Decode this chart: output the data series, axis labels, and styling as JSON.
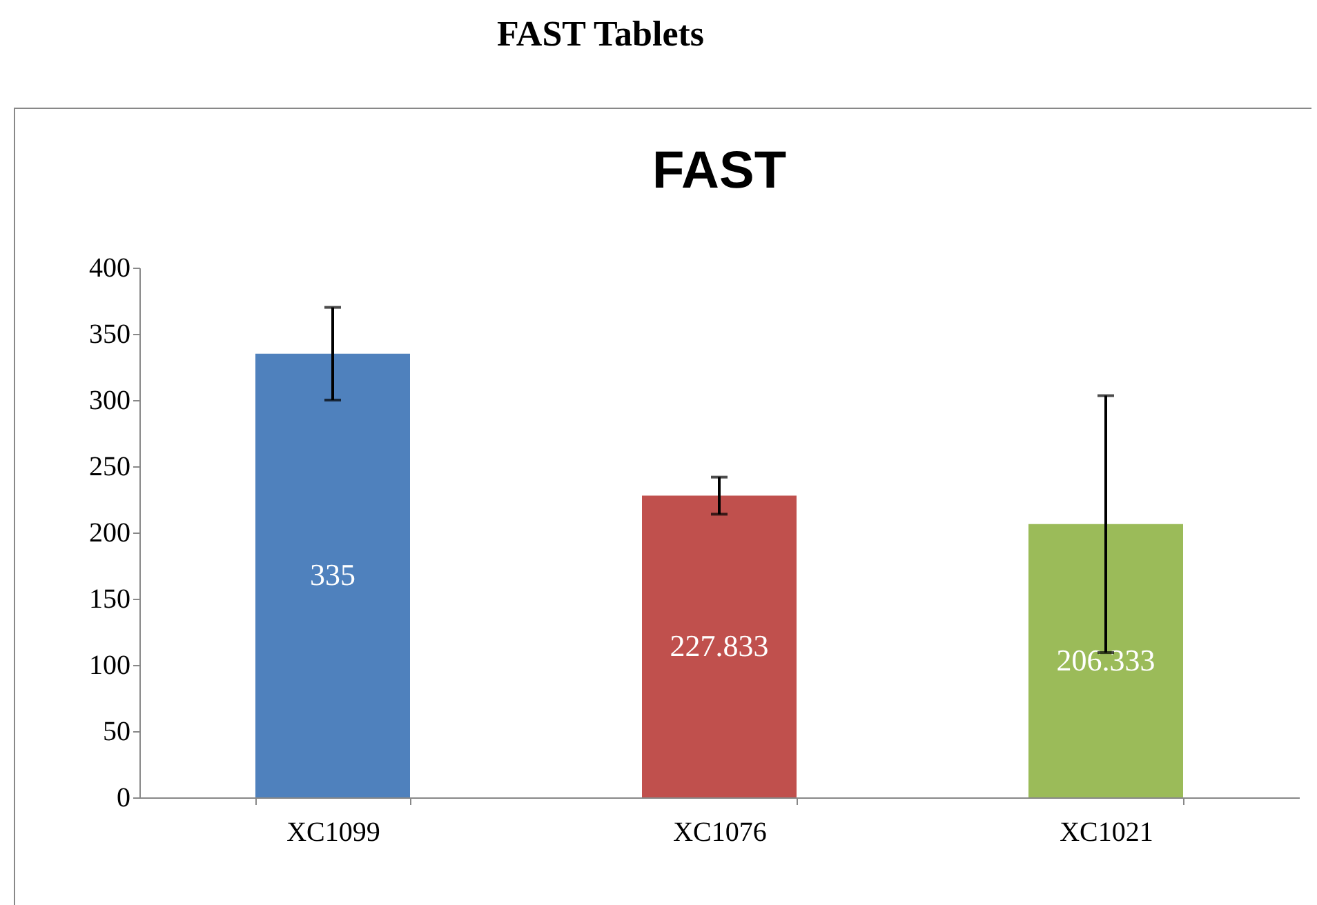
{
  "chart_data": {
    "type": "bar",
    "title": "FAST Tablets",
    "subtitle": "FAST",
    "categories": [
      "XC1099",
      "XC1076",
      "XC1021"
    ],
    "values": [
      335,
      227.833,
      206.333
    ],
    "colors": [
      "#4f81bd",
      "#c0504d",
      "#9bbb59"
    ],
    "errors": [
      35,
      14,
      97
    ],
    "data_labels": true,
    "ylim": [
      0,
      400
    ],
    "yticks": [
      0,
      50,
      100,
      150,
      200,
      250,
      300,
      350,
      400
    ],
    "grid": false
  }
}
